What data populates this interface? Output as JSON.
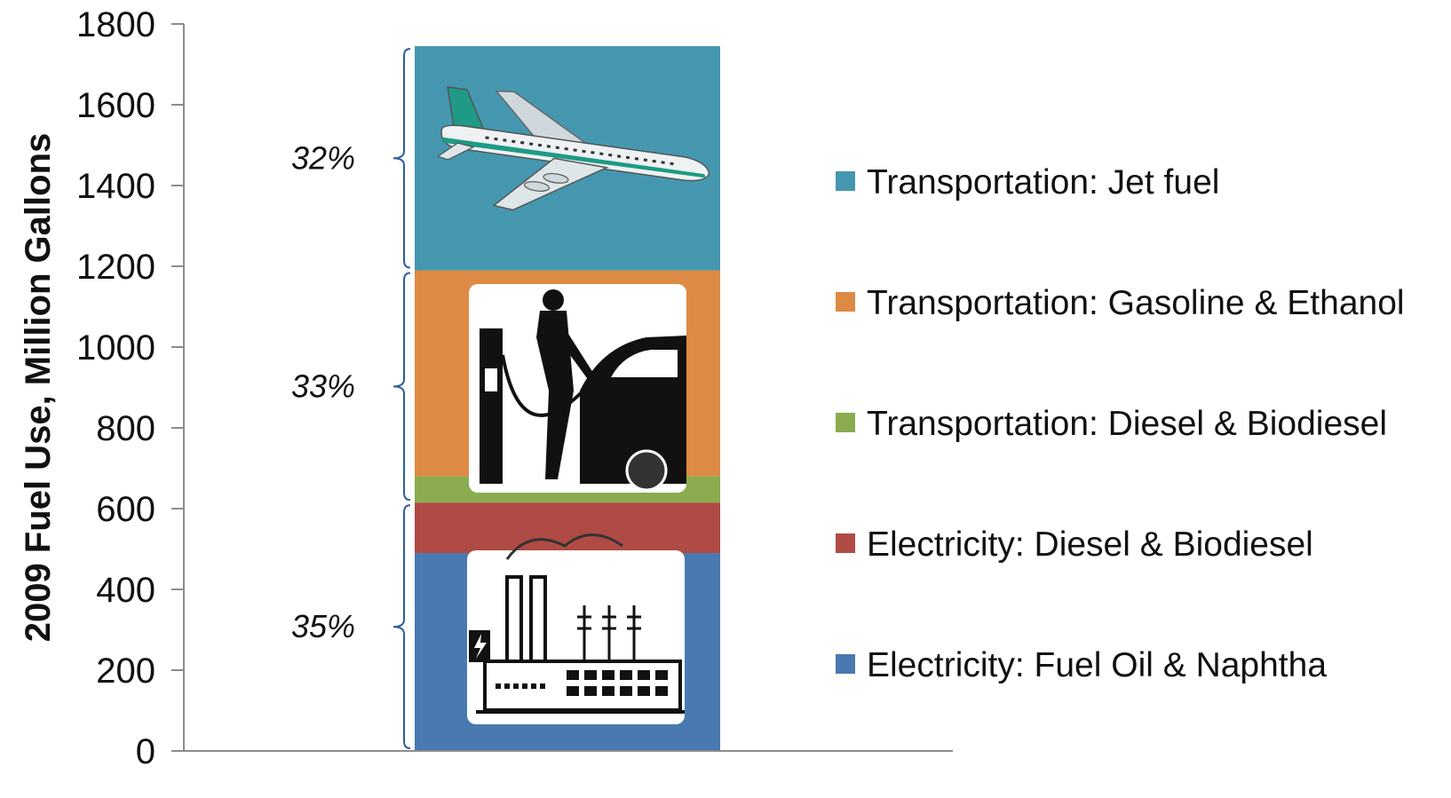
{
  "chart_data": {
    "type": "bar",
    "ylabel": "2009 Fuel Use, Million Gallons",
    "ylim": [
      0,
      1800
    ],
    "yticks": [
      0,
      200,
      400,
      600,
      800,
      1000,
      1200,
      1400,
      1600,
      1800
    ],
    "grid": false,
    "legend_position": "right",
    "series": [
      {
        "name": "Electricity: Fuel Oil & Naphtha",
        "value": 490,
        "color": "#4a78b0"
      },
      {
        "name": "Electricity: Diesel & Biodiesel",
        "value": 125,
        "color": "#b04a45"
      },
      {
        "name": "Transportation: Diesel & Biodiesel",
        "value": 65,
        "color": "#8aab4e"
      },
      {
        "name": "Transportation: Gasoline & Ethanol",
        "value": 510,
        "color": "#dd8a45"
      },
      {
        "name": "Transportation: Jet fuel",
        "value": 555,
        "color": "#4597b0"
      }
    ],
    "annotations": [
      {
        "text": "35%",
        "from": 0,
        "to": 615
      },
      {
        "text": "33%",
        "from": 615,
        "to": 1190
      },
      {
        "text": "32%",
        "from": 1190,
        "to": 1745
      }
    ],
    "legend_order": [
      "Transportation: Jet fuel",
      "Transportation: Gasoline & Ethanol",
      "Transportation: Diesel & Biodiesel",
      "Electricity: Diesel & Biodiesel",
      "Electricity: Fuel Oil & Naphtha"
    ],
    "images": [
      {
        "icon": "airplane-icon",
        "segment": "Transportation: Jet fuel"
      },
      {
        "icon": "fuel-pump-icon",
        "segment": "Transportation: Gasoline & Ethanol"
      },
      {
        "icon": "power-plant-icon",
        "segment": "Electricity: Fuel Oil & Naphtha"
      }
    ]
  }
}
